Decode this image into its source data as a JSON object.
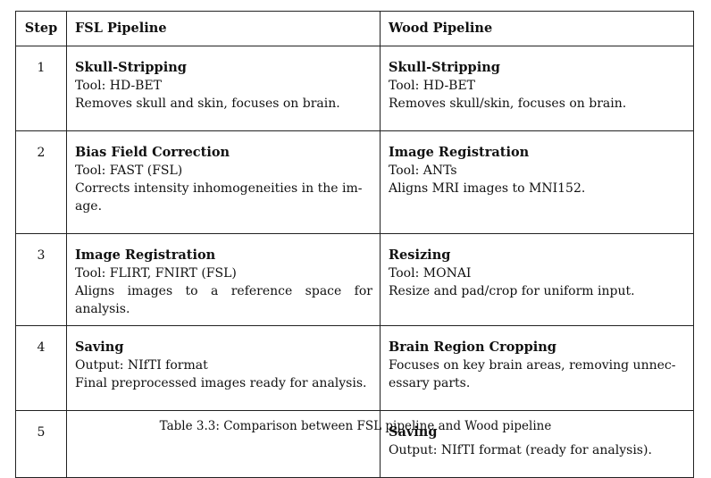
{
  "table": {
    "headers": {
      "step": "Step",
      "fsl": "FSL Pipeline",
      "wood": "Wood Pipeline"
    },
    "rows": [
      {
        "step": "1",
        "fsl": {
          "title": "Skull-Stripping",
          "lines": [
            "Tool: HD-BET",
            "Removes skull and skin, focuses on brain."
          ]
        },
        "wood": {
          "title": "Skull-Stripping",
          "lines": [
            "Tool: HD-BET",
            "Removes skull/skin, focuses on brain."
          ]
        }
      },
      {
        "step": "2",
        "fsl": {
          "title": "Bias Field Correction",
          "lines": [
            "Tool: FAST (FSL)",
            "Corrects intensity inhomogeneities in the im-",
            "age."
          ]
        },
        "wood": {
          "title": "Image Registration",
          "lines": [
            "Tool: ANTs",
            "Aligns MRI images to MNI152."
          ]
        }
      },
      {
        "step": "3",
        "fsl": {
          "title": "Image Registration",
          "lines": [
            "Tool: FLIRT, FNIRT (FSL)",
            "Aligns images to a reference space for analysis."
          ]
        },
        "wood": {
          "title": "Resizing",
          "lines": [
            "Tool: MONAI",
            "Resize and pad/crop for uniform input."
          ]
        }
      },
      {
        "step": "4",
        "fsl": {
          "title": "Saving",
          "lines": [
            "Output: NIfTI format",
            "Final preprocessed images ready for analysis."
          ]
        },
        "wood": {
          "title": "Brain Region Cropping",
          "lines": [
            "Focuses on key brain areas, removing unnec-",
            "essary parts."
          ]
        }
      },
      {
        "step": "5",
        "fsl": {
          "title": "",
          "lines": []
        },
        "wood": {
          "title": "Saving",
          "lines": [
            "Output: NIfTI format (ready for analysis)."
          ]
        }
      }
    ]
  },
  "caption": "Table 3.3: Comparison between FSL pipeline and Wood pipeline"
}
